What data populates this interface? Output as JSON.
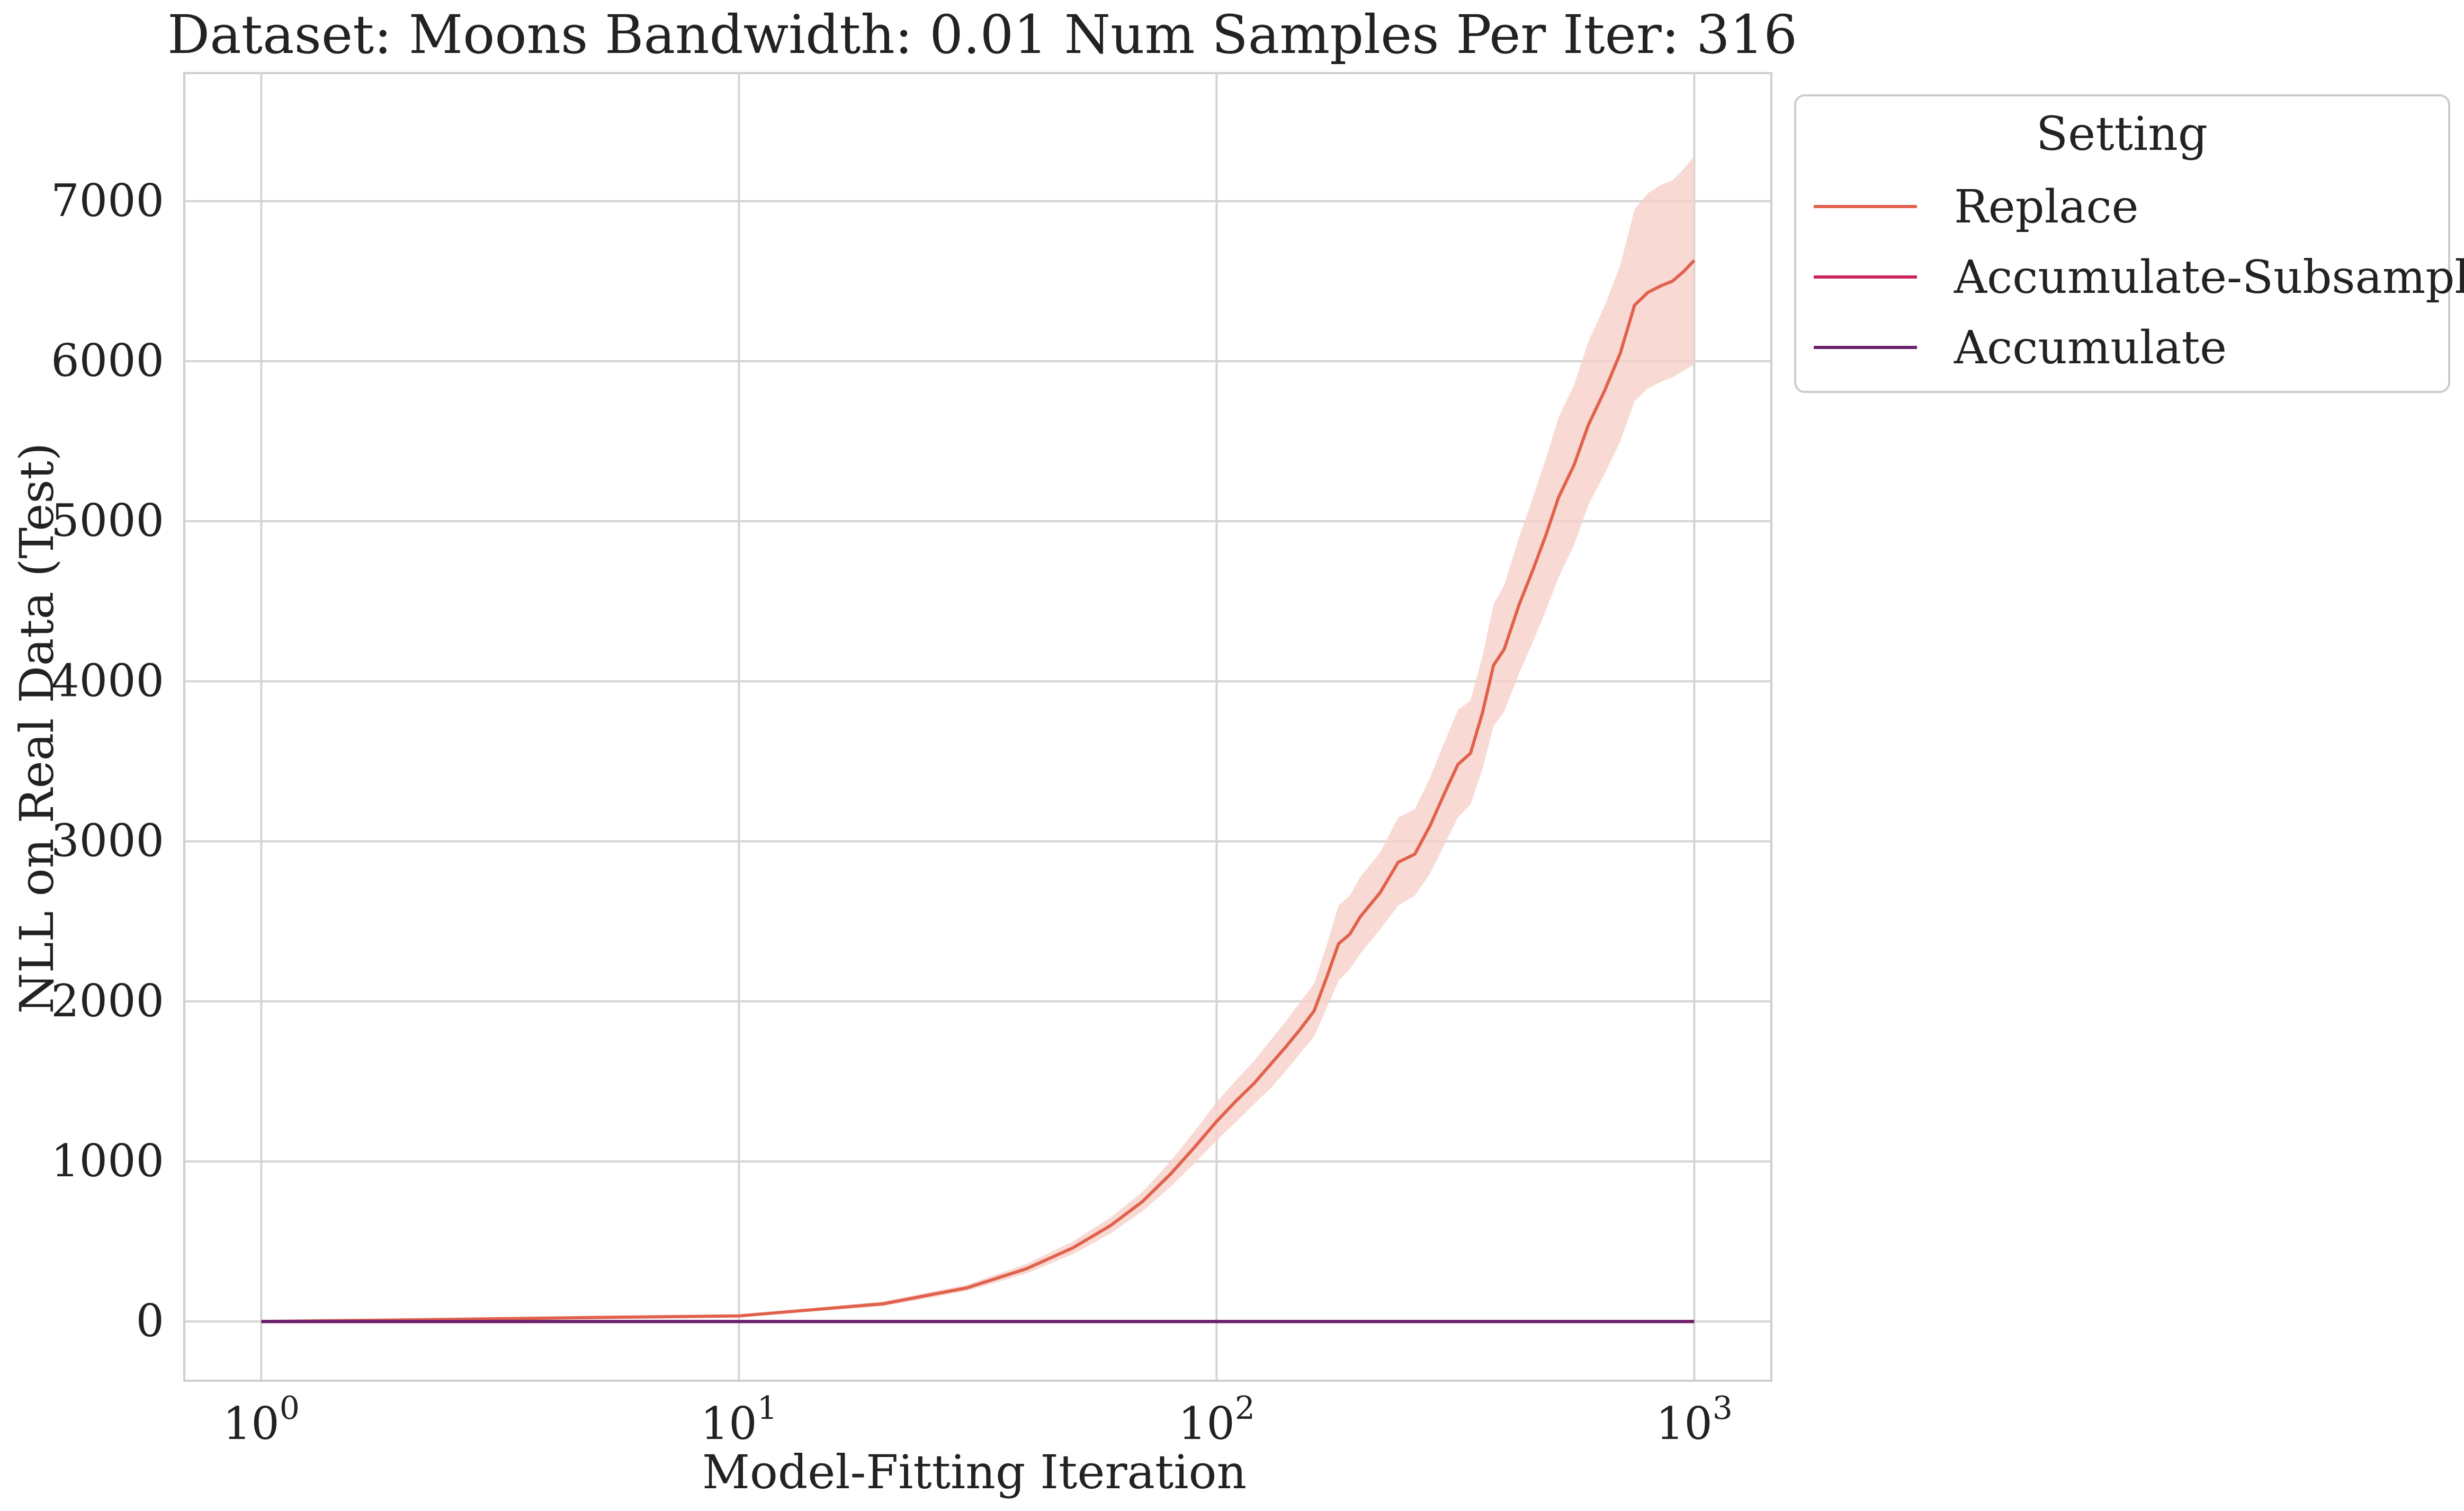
{
  "chart_data": {
    "type": "line",
    "title": "Dataset: Moons Bandwidth: 0.01 Num Samples Per Iter: 316",
    "xlabel": "Model-Fitting Iteration",
    "ylabel": "NLL on Real Data (Test)",
    "xscale": "log",
    "xlim": [
      0.69,
      1450
    ],
    "ylim": [
      -370,
      7800
    ],
    "grid": true,
    "legend_title": "Setting",
    "legend_position": "outside upper right",
    "x_ticks": [
      {
        "value": 1,
        "base": "10",
        "exp": "0"
      },
      {
        "value": 10,
        "base": "10",
        "exp": "1"
      },
      {
        "value": 100,
        "base": "10",
        "exp": "2"
      },
      {
        "value": 1000,
        "base": "10",
        "exp": "3"
      }
    ],
    "y_ticks": [
      0,
      1000,
      2000,
      3000,
      4000,
      5000,
      6000,
      7000
    ],
    "series": [
      {
        "name": "Replace",
        "color": "#e1614c",
        "band_color": "#f6d0c8",
        "x": [
          1,
          2,
          5,
          10,
          20,
          30,
          40,
          50,
          60,
          70,
          80,
          90,
          100,
          110,
          120,
          130,
          140,
          150,
          160,
          170,
          180,
          190,
          200,
          220,
          240,
          260,
          280,
          300,
          320,
          340,
          360,
          380,
          400,
          430,
          460,
          490,
          520,
          560,
          600,
          650,
          700,
          750,
          800,
          850,
          900,
          950,
          1000
        ],
        "y": [
          0,
          10,
          25,
          35,
          110,
          210,
          330,
          460,
          600,
          750,
          920,
          1090,
          1250,
          1380,
          1490,
          1610,
          1720,
          1830,
          1940,
          2150,
          2360,
          2420,
          2530,
          2680,
          2870,
          2920,
          3100,
          3300,
          3480,
          3550,
          3800,
          4100,
          4200,
          4480,
          4700,
          4920,
          5150,
          5350,
          5600,
          5820,
          6050,
          6350,
          6430,
          6470,
          6500,
          6560,
          6630
        ],
        "lower": [
          0,
          8,
          20,
          30,
          95,
          190,
          300,
          420,
          550,
          690,
          840,
          990,
          1130,
          1250,
          1360,
          1460,
          1570,
          1680,
          1780,
          1960,
          2130,
          2200,
          2300,
          2450,
          2600,
          2660,
          2800,
          2980,
          3150,
          3230,
          3450,
          3720,
          3810,
          4050,
          4250,
          4450,
          4650,
          4850,
          5100,
          5300,
          5500,
          5750,
          5830,
          5870,
          5900,
          5940,
          5980
        ],
        "upper": [
          0,
          12,
          30,
          40,
          125,
          230,
          360,
          500,
          650,
          810,
          1000,
          1190,
          1370,
          1510,
          1630,
          1760,
          1880,
          2000,
          2110,
          2350,
          2600,
          2660,
          2780,
          2930,
          3150,
          3200,
          3400,
          3620,
          3820,
          3880,
          4150,
          4480,
          4600,
          4900,
          5150,
          5400,
          5650,
          5850,
          6120,
          6350,
          6600,
          6950,
          7050,
          7100,
          7130,
          7200,
          7280
        ]
      },
      {
        "name": "Accumulate-Subsample",
        "color": "#c9245d",
        "x": [
          1,
          10,
          100,
          1000
        ],
        "y": [
          0,
          0,
          0,
          0
        ]
      },
      {
        "name": "Accumulate",
        "color": "#6a1f6d",
        "x": [
          1,
          10,
          100,
          1000
        ],
        "y": [
          0,
          0,
          0,
          0
        ]
      }
    ]
  }
}
